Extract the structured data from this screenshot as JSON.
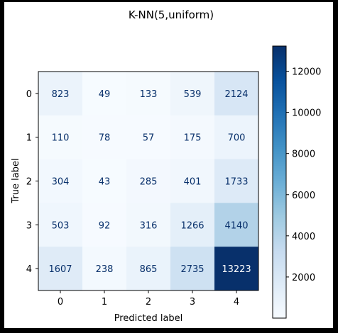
{
  "chart_data": {
    "type": "heatmap",
    "title": "K-NN(5,uniform)",
    "xlabel": "Predicted label",
    "ylabel": "True label",
    "x_tick_labels": [
      "0",
      "1",
      "2",
      "3",
      "4"
    ],
    "y_tick_labels": [
      "0",
      "1",
      "2",
      "3",
      "4"
    ],
    "matrix": [
      [
        823,
        49,
        133,
        539,
        2124
      ],
      [
        110,
        78,
        57,
        175,
        700
      ],
      [
        304,
        43,
        285,
        401,
        1733
      ],
      [
        503,
        92,
        316,
        1266,
        4140
      ],
      [
        1607,
        238,
        865,
        2735,
        13223
      ]
    ],
    "colormap": "Blues",
    "colorbar": {
      "min": 0,
      "max": 13223,
      "ticks": [
        2000,
        4000,
        6000,
        8000,
        10000,
        12000
      ],
      "tick_labels": [
        "2000",
        "4000",
        "6000",
        "8000",
        "10000",
        "12000"
      ]
    },
    "text_color_light": "#ffffff",
    "text_color_dark": "#08306b"
  }
}
